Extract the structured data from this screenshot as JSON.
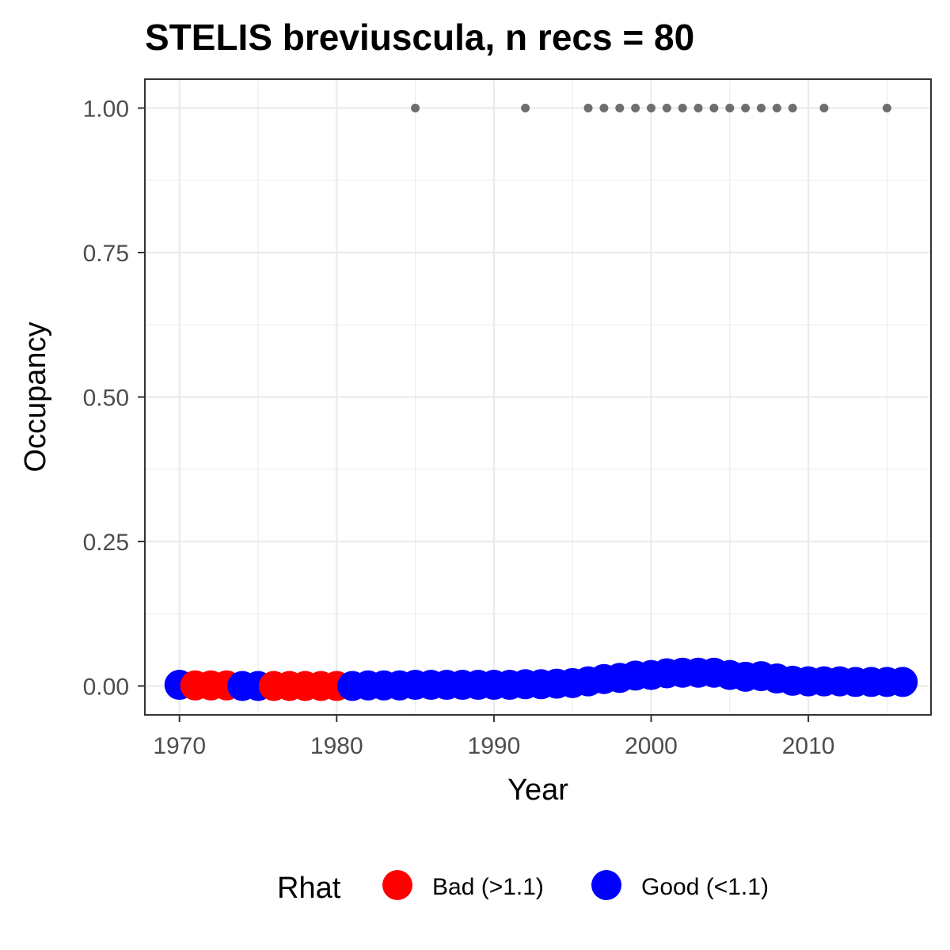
{
  "chart_data": {
    "type": "scatter",
    "title": "STELIS breviuscula, n recs = 80",
    "xlabel": "Year",
    "ylabel": "Occupancy",
    "xlim": [
      1967.8,
      2017.8
    ],
    "ylim": [
      -0.05,
      1.05
    ],
    "x_ticks": [
      1970,
      1980,
      1990,
      2000,
      2010
    ],
    "y_ticks": [
      0.0,
      0.25,
      0.5,
      0.75,
      1.0
    ],
    "y_tick_labels": [
      "0.00",
      "0.25",
      "0.50",
      "0.75",
      "1.00"
    ],
    "grid": true,
    "legend_position": "bottom",
    "legend": {
      "title": "Rhat",
      "entries": [
        {
          "label": "Bad (>1.1)",
          "color": "#ff0000"
        },
        {
          "label": "Good (<1.1)",
          "color": "#0000ff"
        }
      ]
    },
    "colors": {
      "bad": "#ff0000",
      "good": "#0000ff",
      "observed": "#6e6e6e"
    },
    "series": [
      {
        "name": "Bad (>1.1)",
        "points": [
          {
            "x": 1971,
            "y": 0.001
          },
          {
            "x": 1972,
            "y": 0.001
          },
          {
            "x": 1973,
            "y": 0.001
          },
          {
            "x": 1976,
            "y": 0.0
          },
          {
            "x": 1977,
            "y": 0.0
          },
          {
            "x": 1978,
            "y": 0.0
          },
          {
            "x": 1979,
            "y": 0.0
          },
          {
            "x": 1980,
            "y": 0.0
          }
        ]
      },
      {
        "name": "Good (<1.1)",
        "points": [
          {
            "x": 1970,
            "y": 0.002
          },
          {
            "x": 1974,
            "y": 0.0
          },
          {
            "x": 1975,
            "y": 0.0
          },
          {
            "x": 1981,
            "y": 0.0
          },
          {
            "x": 1982,
            "y": 0.001
          },
          {
            "x": 1983,
            "y": 0.001
          },
          {
            "x": 1984,
            "y": 0.001
          },
          {
            "x": 1985,
            "y": 0.002
          },
          {
            "x": 1986,
            "y": 0.002
          },
          {
            "x": 1987,
            "y": 0.002
          },
          {
            "x": 1988,
            "y": 0.002
          },
          {
            "x": 1989,
            "y": 0.002
          },
          {
            "x": 1990,
            "y": 0.002
          },
          {
            "x": 1991,
            "y": 0.002
          },
          {
            "x": 1992,
            "y": 0.003
          },
          {
            "x": 1993,
            "y": 0.003
          },
          {
            "x": 1994,
            "y": 0.004
          },
          {
            "x": 1995,
            "y": 0.005
          },
          {
            "x": 1996,
            "y": 0.008
          },
          {
            "x": 1997,
            "y": 0.012
          },
          {
            "x": 1998,
            "y": 0.014
          },
          {
            "x": 1999,
            "y": 0.018
          },
          {
            "x": 2000,
            "y": 0.019
          },
          {
            "x": 2001,
            "y": 0.022
          },
          {
            "x": 2002,
            "y": 0.023
          },
          {
            "x": 2003,
            "y": 0.023
          },
          {
            "x": 2004,
            "y": 0.023
          },
          {
            "x": 2005,
            "y": 0.019
          },
          {
            "x": 2006,
            "y": 0.016
          },
          {
            "x": 2007,
            "y": 0.017
          },
          {
            "x": 2008,
            "y": 0.013
          },
          {
            "x": 2009,
            "y": 0.009
          },
          {
            "x": 2010,
            "y": 0.008
          },
          {
            "x": 2011,
            "y": 0.008
          },
          {
            "x": 2012,
            "y": 0.008
          },
          {
            "x": 2013,
            "y": 0.007
          },
          {
            "x": 2014,
            "y": 0.007
          },
          {
            "x": 2015,
            "y": 0.007
          },
          {
            "x": 2016,
            "y": 0.007
          }
        ]
      },
      {
        "points": [
          {
            "x": 1985,
            "y": 1
          },
          {
            "x": 1992,
            "y": 1
          },
          {
            "x": 1996,
            "y": 1
          },
          {
            "x": 1997,
            "y": 1
          },
          {
            "x": 1998,
            "y": 1
          },
          {
            "x": 1999,
            "y": 1
          },
          {
            "x": 2000,
            "y": 1
          },
          {
            "x": 2001,
            "y": 1
          },
          {
            "x": 2002,
            "y": 1
          },
          {
            "x": 2003,
            "y": 1
          },
          {
            "x": 2004,
            "y": 1
          },
          {
            "x": 2005,
            "y": 1
          },
          {
            "x": 2006,
            "y": 1
          },
          {
            "x": 2007,
            "y": 1
          },
          {
            "x": 2008,
            "y": 1
          },
          {
            "x": 2009,
            "y": 1
          },
          {
            "x": 2011,
            "y": 1
          },
          {
            "x": 2015,
            "y": 1
          }
        ]
      }
    ]
  }
}
